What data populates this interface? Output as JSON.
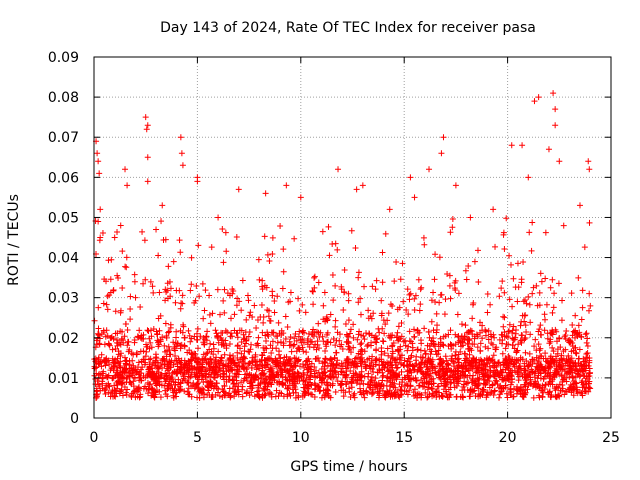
{
  "chart_data": {
    "type": "scatter",
    "title": "Day 143 of 2024, Rate Of TEC Index for receiver pasa",
    "xlabel": "GPS time / hours",
    "ylabel": "ROTI / TECUs",
    "xlim": [
      0,
      25
    ],
    "ylim": [
      0,
      0.09
    ],
    "xticks": [
      0,
      5,
      10,
      15,
      20,
      25
    ],
    "xtick_labels": [
      "0",
      "5",
      "10",
      "15",
      "20",
      "25"
    ],
    "yticks": [
      0,
      0.01,
      0.02,
      0.03,
      0.04,
      0.05,
      0.06,
      0.07,
      0.08,
      0.09
    ],
    "ytick_labels": [
      "0",
      "0.01",
      "0.02",
      "0.03",
      "0.04",
      "0.05",
      "0.06",
      "0.07",
      "0.08",
      "0.09"
    ],
    "grid": true,
    "marker": "+",
    "color": "#ff0000",
    "data_range_hours": [
      0,
      24
    ],
    "series": [
      {
        "name": "ROTI",
        "baseline_range": [
          0.005,
          0.015
        ],
        "typical_max": 0.035,
        "points": [
          [
            0.1,
            0.069
          ],
          [
            0.15,
            0.066
          ],
          [
            0.2,
            0.064
          ],
          [
            0.25,
            0.061
          ],
          [
            0.3,
            0.052
          ],
          [
            0.2,
            0.049
          ],
          [
            1.5,
            0.062
          ],
          [
            1.6,
            0.058
          ],
          [
            2.5,
            0.075
          ],
          [
            2.55,
            0.072
          ],
          [
            2.6,
            0.073
          ],
          [
            2.6,
            0.065
          ],
          [
            2.6,
            0.059
          ],
          [
            4.2,
            0.07
          ],
          [
            4.25,
            0.066
          ],
          [
            4.3,
            0.063
          ],
          [
            5.0,
            0.059
          ],
          [
            5.0,
            0.06
          ],
          [
            7.0,
            0.057
          ],
          [
            8.3,
            0.056
          ],
          [
            9.3,
            0.058
          ],
          [
            10.0,
            0.055
          ],
          [
            11.8,
            0.062
          ],
          [
            12.7,
            0.057
          ],
          [
            13.0,
            0.058
          ],
          [
            15.3,
            0.06
          ],
          [
            15.5,
            0.055
          ],
          [
            16.2,
            0.062
          ],
          [
            16.9,
            0.07
          ],
          [
            16.8,
            0.066
          ],
          [
            17.5,
            0.058
          ],
          [
            20.2,
            0.068
          ],
          [
            20.7,
            0.068
          ],
          [
            21.0,
            0.06
          ],
          [
            21.3,
            0.079
          ],
          [
            21.5,
            0.08
          ],
          [
            22.2,
            0.081
          ],
          [
            22.3,
            0.077
          ],
          [
            22.3,
            0.073
          ],
          [
            22.0,
            0.067
          ],
          [
            22.5,
            0.064
          ],
          [
            23.9,
            0.064
          ],
          [
            23.95,
            0.062
          ],
          [
            1.0,
            0.045
          ],
          [
            3.3,
            0.053
          ],
          [
            6.0,
            0.05
          ],
          [
            14.3,
            0.052
          ],
          [
            18.2,
            0.05
          ],
          [
            19.3,
            0.052
          ],
          [
            0.3,
            0.045
          ],
          [
            3.0,
            0.047
          ],
          [
            23.5,
            0.053
          ]
        ]
      }
    ]
  }
}
